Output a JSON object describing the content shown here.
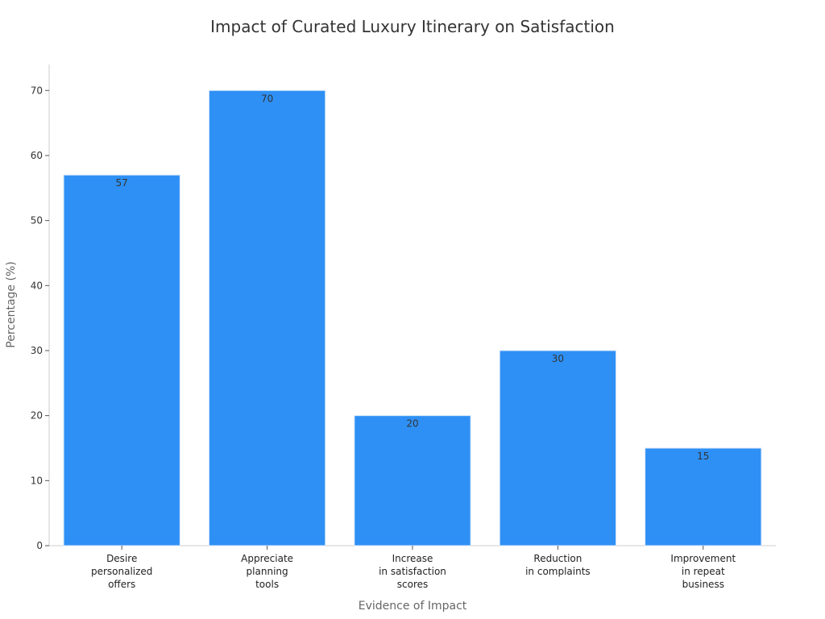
{
  "chart_data": {
    "type": "bar",
    "title": "Impact of Curated Luxury Itinerary on Satisfaction",
    "xlabel": "Evidence of Impact",
    "ylabel": "Percentage (%)",
    "categories": [
      [
        "Desire",
        "personalized",
        "offers"
      ],
      [
        "Appreciate",
        "planning",
        "tools"
      ],
      [
        "Increase",
        "in satisfaction",
        "scores"
      ],
      [
        "Reduction",
        "in complaints"
      ],
      [
        "Improvement",
        "in repeat",
        "business"
      ]
    ],
    "values": [
      57,
      70,
      20,
      30,
      15
    ],
    "yticks": [
      0,
      10,
      20,
      30,
      40,
      50,
      60,
      70
    ],
    "ylim": [
      0,
      74
    ],
    "bar_color": "#2e90f5",
    "grid": false,
    "legend": "none"
  }
}
